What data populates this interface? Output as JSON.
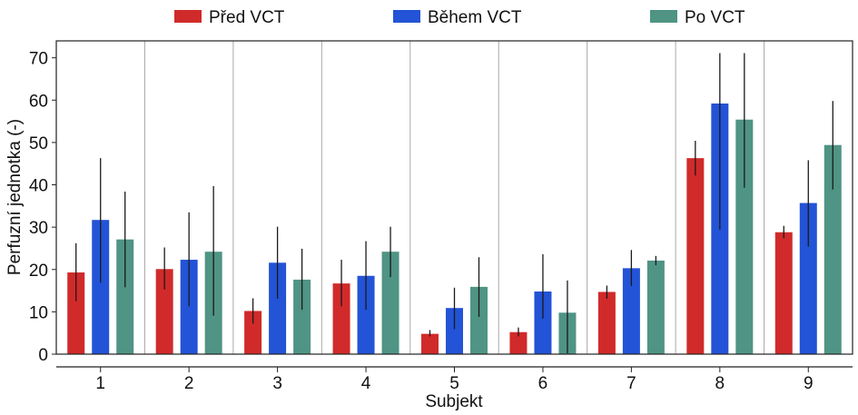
{
  "chart_data": {
    "type": "bar",
    "title": "",
    "xlabel": "Subjekt",
    "ylabel": "Perfuzní jednotka (-)",
    "categories": [
      "1",
      "2",
      "3",
      "4",
      "5",
      "6",
      "7",
      "8",
      "9"
    ],
    "ylim": [
      0,
      74
    ],
    "yticks": [
      0,
      10,
      20,
      30,
      40,
      50,
      60,
      70
    ],
    "legend_position": "top",
    "series": [
      {
        "name": "Před VCT",
        "color": "#d12a2a",
        "values": [
          19.3,
          20.1,
          10.2,
          16.7,
          4.8,
          5.2,
          14.7,
          46.3,
          28.8
        ],
        "err_low": [
          12.5,
          15.3,
          7.2,
          11.3,
          4.2,
          4.2,
          13.1,
          42.2,
          27.4
        ],
        "err_high": [
          26.2,
          25.2,
          13.2,
          22.3,
          5.7,
          6.3,
          16.2,
          50.4,
          30.3
        ]
      },
      {
        "name": "Během VCT",
        "color": "#2353d6",
        "values": [
          31.7,
          22.3,
          21.6,
          18.5,
          10.9,
          14.8,
          20.3,
          59.2,
          35.7
        ],
        "err_low": [
          16.9,
          11.3,
          13.1,
          10.5,
          5.9,
          8.4,
          16.1,
          29.4,
          25.4
        ],
        "err_high": [
          46.3,
          33.5,
          30.1,
          26.7,
          15.7,
          23.6,
          24.6,
          71.1,
          45.8
        ]
      },
      {
        "name": "Po VCT",
        "color": "#4f9484",
        "values": [
          27.1,
          24.2,
          17.6,
          24.2,
          15.9,
          9.8,
          22.1,
          55.4,
          49.4
        ],
        "err_low": [
          15.8,
          9.1,
          10.5,
          18.2,
          8.8,
          0.2,
          21.0,
          39.3,
          38.9
        ],
        "err_high": [
          38.4,
          39.7,
          24.9,
          30.1,
          22.9,
          17.4,
          23.2,
          71.1,
          59.8
        ]
      }
    ]
  }
}
